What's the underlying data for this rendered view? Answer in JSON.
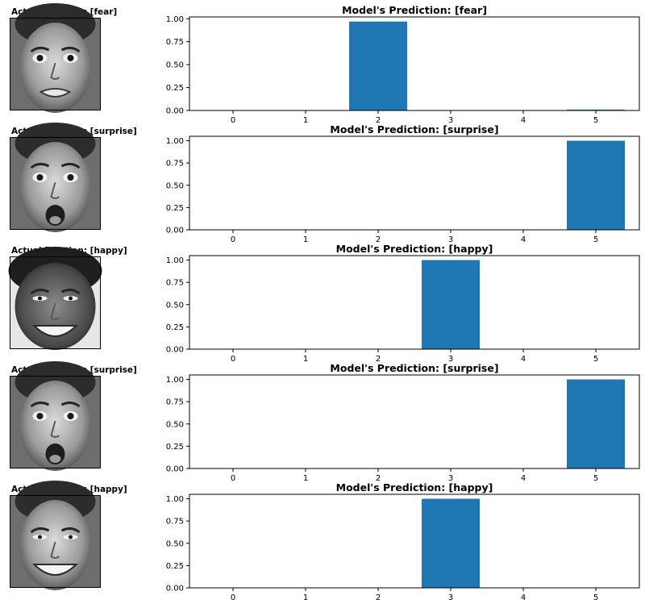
{
  "chart_data": [
    {
      "type": "bar",
      "actual_label": "Actual Emotion: [fear]",
      "title": "Model's Prediction: [fear]",
      "categories": [
        "0",
        "1",
        "2",
        "3",
        "4",
        "5"
      ],
      "values": [
        0.0,
        0.0,
        0.97,
        0.0,
        0.0,
        0.01
      ],
      "ylim": [
        0,
        1.02
      ],
      "yticks": [
        "0.00",
        "0.25",
        "0.50",
        "0.75",
        "1.00"
      ],
      "xlabel": "",
      "ylabel": "",
      "face": {
        "expression": "fear"
      }
    },
    {
      "type": "bar",
      "actual_label": "Actual Emotion: [surprise]",
      "title": "Model's Prediction: [surprise]",
      "categories": [
        "0",
        "1",
        "2",
        "3",
        "4",
        "5"
      ],
      "values": [
        0.0,
        0.0,
        0.0,
        0.0,
        0.0,
        1.0
      ],
      "ylim": [
        0,
        1.05
      ],
      "yticks": [
        "0.00",
        "0.25",
        "0.50",
        "0.75",
        "1.00"
      ],
      "xlabel": "",
      "ylabel": "",
      "face": {
        "expression": "surprise"
      }
    },
    {
      "type": "bar",
      "actual_label": "Actual Emotion: [happy]",
      "title": "Model's Prediction: [happy]",
      "categories": [
        "0",
        "1",
        "2",
        "3",
        "4",
        "5"
      ],
      "values": [
        0.0,
        0.0,
        0.0,
        1.0,
        0.0,
        0.0
      ],
      "ylim": [
        0,
        1.05
      ],
      "yticks": [
        "0.00",
        "0.25",
        "0.50",
        "0.75",
        "1.00"
      ],
      "xlabel": "",
      "ylabel": "",
      "face": {
        "expression": "happy"
      }
    },
    {
      "type": "bar",
      "actual_label": "Actual Emotion: [surprise]",
      "title": "Model's Prediction: [surprise]",
      "categories": [
        "0",
        "1",
        "2",
        "3",
        "4",
        "5"
      ],
      "values": [
        0.0,
        0.0,
        0.0,
        0.0,
        0.0,
        1.0
      ],
      "ylim": [
        0,
        1.05
      ],
      "yticks": [
        "0.00",
        "0.25",
        "0.50",
        "0.75",
        "1.00"
      ],
      "xlabel": "",
      "ylabel": "",
      "face": {
        "expression": "surprise"
      }
    },
    {
      "type": "bar",
      "actual_label": "Actual Emotion: [happy]",
      "title": "Model's Prediction: [happy]",
      "categories": [
        "0",
        "1",
        "2",
        "3",
        "4",
        "5"
      ],
      "values": [
        0.0,
        0.0,
        0.0,
        1.0,
        0.0,
        0.0
      ],
      "ylim": [
        0,
        1.05
      ],
      "yticks": [
        "0.00",
        "0.25",
        "0.50",
        "0.75",
        "1.00"
      ],
      "xlabel": "",
      "ylabel": "",
      "face": {
        "expression": "happy"
      }
    }
  ],
  "colors": {
    "bar": "#1f77b4",
    "axis": "#000000",
    "text": "#000000",
    "background": "#ffffff"
  }
}
